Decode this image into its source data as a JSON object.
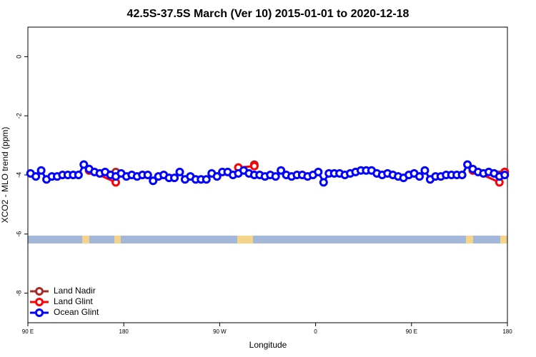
{
  "chart_data": {
    "type": "line",
    "title": "42.5S-37.5S March (Ver 10)   2015-01-01 to 2020-12-18",
    "x_label": "Longitude",
    "y_label": "XCO2 - MLO trend (ppm)",
    "xlim": [
      90,
      540
    ],
    "ylim": [
      -9,
      1
    ],
    "xticks": [
      {
        "value": 90,
        "label": "90 E"
      },
      180,
      {
        "value": 270,
        "label": "90 W"
      },
      {
        "value": 360,
        "label": "0"
      },
      {
        "value": 450,
        "label": "90 E"
      },
      {
        "value": 540,
        "label": "180"
      }
    ],
    "yticks": [
      0,
      -2,
      -4,
      -6,
      -8
    ],
    "legend": "bottom-left",
    "series": [
      {
        "name": "Land Nadir",
        "color": "#a52a2a",
        "x": [
          147.5,
          172.5,
          null,
          302.5,
          null,
          507.5,
          537.5
        ],
        "values": [
          -3.85,
          -3.9,
          null,
          -3.65,
          null,
          -3.85,
          -3.9
        ]
      },
      {
        "name": "Land Glint",
        "color": "#ff0000",
        "x": [
          147.5,
          172.5,
          null,
          287.5,
          302.5,
          null,
          507.5,
          532.5,
          537.5
        ],
        "values": [
          -3.85,
          -4.25,
          null,
          -3.75,
          -3.7,
          null,
          -3.85,
          -4.25,
          -3.9
        ]
      },
      {
        "name": "Ocean Glint",
        "color": "#0000ff",
        "x": [
          92.5,
          97.5,
          102.5,
          107.5,
          112.5,
          117.5,
          122.5,
          127.5,
          132.5,
          137.5,
          142.5,
          147.5,
          152.5,
          157.5,
          162.5,
          167.5,
          172.5,
          177.5,
          182.5,
          187.5,
          192.5,
          197.5,
          202.5,
          207.5,
          212.5,
          217.5,
          222.5,
          227.5,
          232.5,
          237.5,
          242.5,
          247.5,
          252.5,
          257.5,
          262.5,
          267.5,
          272.5,
          277.5,
          282.5,
          287.5,
          292.5,
          297.5,
          302.5,
          307.5,
          312.5,
          317.5,
          322.5,
          327.5,
          332.5,
          337.5,
          342.5,
          347.5,
          352.5,
          357.5,
          362.5,
          367.5,
          372.5,
          377.5,
          382.5,
          387.5,
          392.5,
          397.5,
          402.5,
          407.5,
          412.5,
          417.5,
          422.5,
          427.5,
          432.5,
          437.5,
          442.5,
          447.5,
          452.5,
          457.5,
          462.5,
          467.5,
          472.5,
          477.5,
          482.5,
          487.5,
          492.5,
          497.5,
          502.5,
          507.5,
          512.5,
          517.5,
          522.5,
          527.5,
          532.5,
          537.5
        ],
        "values": [
          -3.95,
          -4.05,
          -3.85,
          -4.15,
          -4.05,
          -4.05,
          -4.0,
          -4.0,
          -4.0,
          -4.0,
          -3.65,
          -3.8,
          -3.9,
          -3.95,
          -3.9,
          -4.0,
          -4.05,
          -3.95,
          -4.05,
          -4.0,
          -4.05,
          -4.0,
          -4.0,
          -4.2,
          -4.05,
          -4.0,
          -4.1,
          -4.1,
          -3.9,
          -4.15,
          -4.05,
          -4.15,
          -4.15,
          -4.15,
          -3.95,
          -4.05,
          -3.9,
          -3.9,
          -4.0,
          -3.95,
          -3.85,
          -3.95,
          -4.0,
          -4.0,
          -4.05,
          -4.0,
          -4.05,
          -3.85,
          -4.0,
          -4.05,
          -4.0,
          -4.0,
          -4.05,
          -4.0,
          -3.9,
          -4.25,
          -3.95,
          -3.95,
          -3.95,
          -4.0,
          -3.95,
          -3.9,
          -3.85,
          -3.85,
          -3.85,
          -3.95,
          -4.0,
          -3.95,
          -4.0,
          -4.05,
          -4.1,
          -4.0,
          -3.95,
          -4.05,
          -3.85,
          -4.15,
          -4.05,
          -4.05,
          -4.0,
          -4.0,
          -4.0,
          -4.0,
          -3.65,
          -3.8,
          -3.9,
          -3.95,
          -3.9,
          -3.95,
          -4.05,
          -4.0
        ]
      }
    ]
  }
}
